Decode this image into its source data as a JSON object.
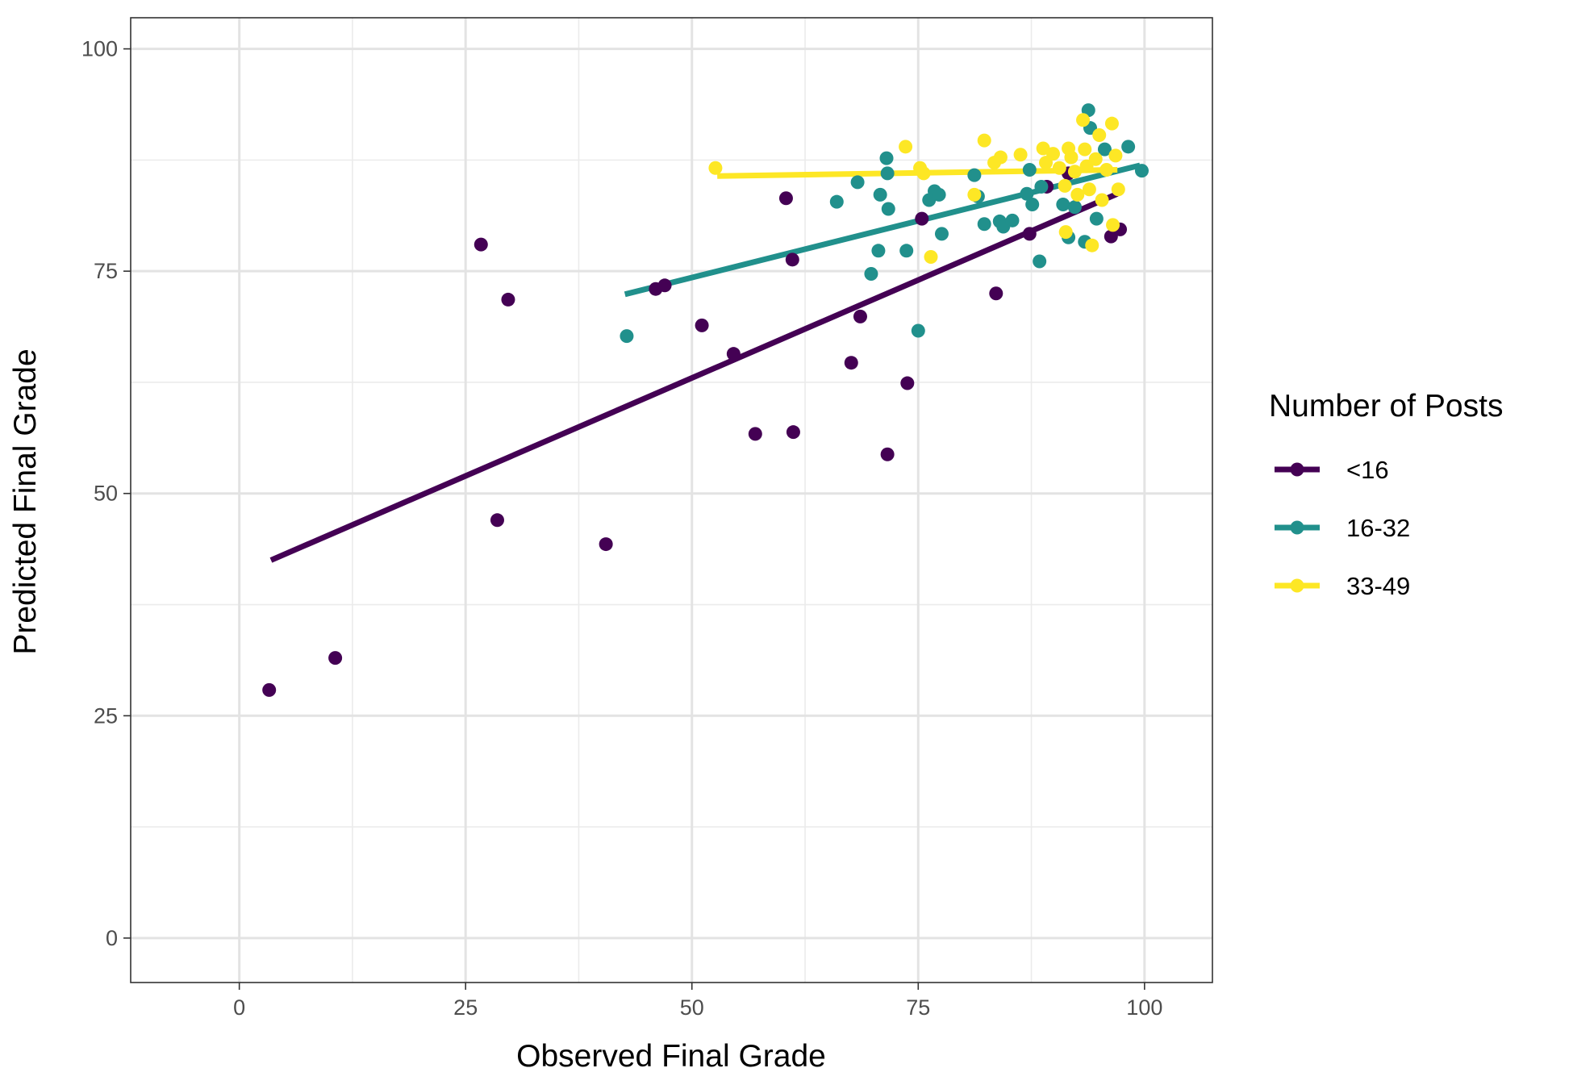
{
  "chart_data": {
    "type": "scatter",
    "xlabel": "Observed Final Grade",
    "ylabel": "Predicted Final Grade",
    "xlim": [
      -12,
      107.5
    ],
    "ylim": [
      -5,
      103.5
    ],
    "x_ticks": [
      "0",
      "25",
      "50",
      "75",
      "100"
    ],
    "y_ticks": [
      "0",
      "25",
      "50",
      "75",
      "100"
    ],
    "grid": true,
    "legend": {
      "title": "Number of Posts",
      "position": "right"
    },
    "series": [
      {
        "name": "<16",
        "color": "#440154",
        "points": [
          [
            3.3,
            27.9
          ],
          [
            10.6,
            31.5
          ],
          [
            26.7,
            78.0
          ],
          [
            28.5,
            47.0
          ],
          [
            29.7,
            71.8
          ],
          [
            40.5,
            44.3
          ],
          [
            46.0,
            73.0
          ],
          [
            47.0,
            73.4
          ],
          [
            51.1,
            68.9
          ],
          [
            54.6,
            65.7
          ],
          [
            57.0,
            56.7
          ],
          [
            60.4,
            83.2
          ],
          [
            61.1,
            76.3
          ],
          [
            61.2,
            56.9
          ],
          [
            67.6,
            64.7
          ],
          [
            68.6,
            69.9
          ],
          [
            71.6,
            54.4
          ],
          [
            73.8,
            62.4
          ],
          [
            75.4,
            80.9
          ],
          [
            83.6,
            72.5
          ],
          [
            87.3,
            79.2
          ],
          [
            89.2,
            84.5
          ],
          [
            91.6,
            86.0
          ],
          [
            92.3,
            82.2
          ],
          [
            96.3,
            78.9
          ],
          [
            97.3,
            79.7
          ]
        ],
        "trend": [
          [
            3.5,
            42.5
          ],
          [
            97.0,
            83.7
          ]
        ]
      },
      {
        "name": "16-32",
        "color": "#21908C",
        "points": [
          [
            42.8,
            67.7
          ],
          [
            66.0,
            82.8
          ],
          [
            68.3,
            85.0
          ],
          [
            69.8,
            74.7
          ],
          [
            70.6,
            77.3
          ],
          [
            70.8,
            83.6
          ],
          [
            71.5,
            87.7
          ],
          [
            71.6,
            86.0
          ],
          [
            71.7,
            82.0
          ],
          [
            73.7,
            77.3
          ],
          [
            75.0,
            68.3
          ],
          [
            76.2,
            83.0
          ],
          [
            76.8,
            84.0
          ],
          [
            77.3,
            83.6
          ],
          [
            77.6,
            79.2
          ],
          [
            81.2,
            85.8
          ],
          [
            81.6,
            83.4
          ],
          [
            82.3,
            80.3
          ],
          [
            84.0,
            80.6
          ],
          [
            84.4,
            80.0
          ],
          [
            85.4,
            80.7
          ],
          [
            87.0,
            83.7
          ],
          [
            87.3,
            86.4
          ],
          [
            87.6,
            82.5
          ],
          [
            88.4,
            76.1
          ],
          [
            88.6,
            84.5
          ],
          [
            91.0,
            82.5
          ],
          [
            91.6,
            78.8
          ],
          [
            92.3,
            82.2
          ],
          [
            93.4,
            78.3
          ],
          [
            93.8,
            93.1
          ],
          [
            94.0,
            91.1
          ],
          [
            94.7,
            80.9
          ],
          [
            95.6,
            88.7
          ],
          [
            98.2,
            89.0
          ],
          [
            99.7,
            86.3
          ]
        ],
        "trend": [
          [
            42.6,
            72.4
          ],
          [
            99.5,
            86.9
          ]
        ]
      },
      {
        "name": "33-49",
        "color": "#FDE725",
        "points": [
          [
            52.6,
            86.6
          ],
          [
            73.6,
            89.0
          ],
          [
            75.2,
            86.6
          ],
          [
            75.6,
            86.0
          ],
          [
            76.4,
            76.6
          ],
          [
            81.2,
            83.6
          ],
          [
            82.3,
            89.7
          ],
          [
            83.4,
            87.2
          ],
          [
            84.1,
            87.8
          ],
          [
            86.3,
            88.1
          ],
          [
            88.8,
            88.8
          ],
          [
            89.1,
            87.2
          ],
          [
            89.9,
            88.2
          ],
          [
            90.6,
            86.6
          ],
          [
            91.2,
            84.6
          ],
          [
            91.3,
            79.4
          ],
          [
            91.6,
            88.8
          ],
          [
            91.9,
            87.8
          ],
          [
            92.3,
            86.2
          ],
          [
            92.6,
            83.6
          ],
          [
            93.2,
            92.0
          ],
          [
            93.4,
            88.7
          ],
          [
            93.6,
            86.8
          ],
          [
            93.9,
            84.2
          ],
          [
            94.2,
            77.9
          ],
          [
            94.6,
            87.6
          ],
          [
            95.0,
            90.3
          ],
          [
            95.3,
            83.0
          ],
          [
            95.8,
            86.4
          ],
          [
            96.4,
            91.6
          ],
          [
            96.5,
            80.2
          ],
          [
            96.8,
            88.0
          ],
          [
            97.1,
            84.2
          ]
        ],
        "trend": [
          [
            52.8,
            85.7
          ],
          [
            97.0,
            86.4
          ]
        ]
      }
    ]
  }
}
